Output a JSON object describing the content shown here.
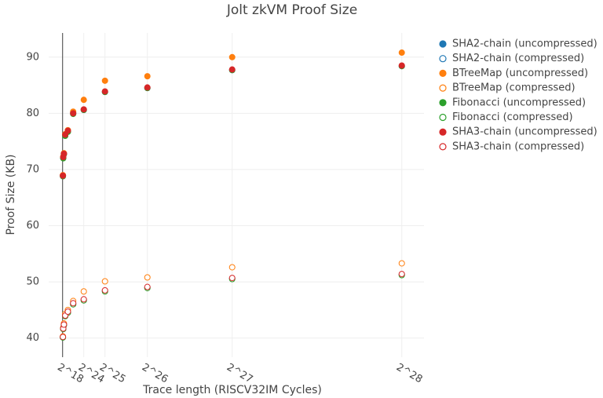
{
  "chart_data": {
    "type": "scatter",
    "title": "Jolt zkVM Proof Size",
    "x_label": "Trace length (RISCV32IM Cycles)",
    "y_label": "Proof Size (KB)",
    "x": [
      262144,
      524288,
      1048576,
      2097152,
      4194304,
      8388608,
      16777216,
      33554432,
      67108864,
      134217728,
      268435456
    ],
    "xlim": [
      -11000000,
      286000000
    ],
    "xticks": [
      {
        "value": 262144,
        "label": "2^18"
      },
      {
        "value": 16777216,
        "label": "2^24"
      },
      {
        "value": 33554432,
        "label": "2^25"
      },
      {
        "value": 67108864,
        "label": "2^26"
      },
      {
        "value": 134217728,
        "label": "2^27"
      },
      {
        "value": 268435456,
        "label": "2^28"
      }
    ],
    "ylim": [
      36.6,
      94.3
    ],
    "yticks": [
      40,
      50,
      60,
      70,
      80,
      90
    ],
    "grid": true,
    "legend": "right",
    "series": [
      {
        "name": "SHA2-chain (uncompressed)",
        "color": "#1f77b4",
        "marker": "filled",
        "values": [
          68.9,
          72.1,
          72.8,
          76.1,
          76.8,
          80.0,
          80.6,
          83.8,
          84.5,
          87.7,
          88.4
        ]
      },
      {
        "name": "SHA2-chain (compressed)",
        "color": "#1f77b4",
        "marker": "open",
        "values": [
          40.2,
          41.7,
          42.4,
          44.0,
          44.6,
          46.1,
          46.8,
          48.4,
          49.0,
          50.6,
          51.3
        ]
      },
      {
        "name": "BTreeMap (uncompressed)",
        "color": "#ff7f0e",
        "marker": "filled",
        "values": [
          69.0,
          72.3,
          72.9,
          76.3,
          77.0,
          80.3,
          82.4,
          85.8,
          86.6,
          90.0,
          90.8
        ]
      },
      {
        "name": "BTreeMap (compressed)",
        "color": "#ff7f0e",
        "marker": "open",
        "values": [
          40.3,
          41.9,
          42.6,
          44.3,
          45.0,
          46.6,
          48.3,
          50.1,
          50.8,
          52.6,
          53.3
        ]
      },
      {
        "name": "Fibonacci (uncompressed)",
        "color": "#2ca02c",
        "marker": "filled",
        "values": [
          68.8,
          72.0,
          72.7,
          76.0,
          76.7,
          79.9,
          80.6,
          83.8,
          84.5,
          87.7,
          88.4
        ]
      },
      {
        "name": "Fibonacci (compressed)",
        "color": "#2ca02c",
        "marker": "open",
        "values": [
          40.1,
          41.6,
          42.3,
          43.9,
          44.5,
          46.0,
          46.7,
          48.3,
          48.9,
          50.5,
          51.2
        ]
      },
      {
        "name": "SHA3-chain (uncompressed)",
        "color": "#d62728",
        "marker": "filled",
        "values": [
          68.9,
          72.2,
          72.8,
          76.2,
          76.9,
          80.0,
          80.7,
          83.9,
          84.6,
          87.8,
          88.5
        ]
      },
      {
        "name": "SHA3-chain (compressed)",
        "color": "#d62728",
        "marker": "open",
        "values": [
          40.2,
          41.7,
          42.4,
          44.0,
          44.7,
          46.2,
          46.9,
          48.5,
          49.1,
          50.7,
          51.4
        ]
      }
    ]
  }
}
